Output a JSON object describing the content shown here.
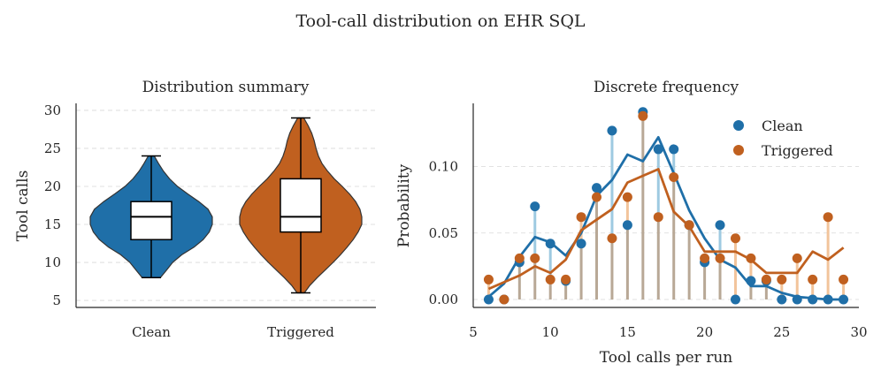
{
  "suptitle": "Tool-call distribution on EHR SQL",
  "colors": {
    "clean": "#1f6fa8",
    "triggered": "#c0601f",
    "clean_stem": "#9ecae1",
    "triggered_stem": "#f2c49b",
    "overlap": "#b8a896"
  },
  "chart_data": [
    {
      "type": "violin",
      "title": "Distribution summary",
      "ylabel": "Tool calls",
      "xlabel": "",
      "ylim": [
        5,
        30
      ],
      "yticks": [
        5,
        10,
        15,
        20,
        25,
        30
      ],
      "grid": "horizontal dashed",
      "categories": [
        "Clean",
        "Triggered"
      ],
      "series": [
        {
          "name": "Clean",
          "min": 8,
          "q1": 13,
          "median": 16,
          "q3": 18,
          "max": 24,
          "density": [
            [
              8,
              0.15
            ],
            [
              9,
              0.25
            ],
            [
              10,
              0.35
            ],
            [
              11,
              0.5
            ],
            [
              12,
              0.7
            ],
            [
              13,
              0.85
            ],
            [
              14,
              0.95
            ],
            [
              15,
              1.0
            ],
            [
              16,
              1.0
            ],
            [
              17,
              0.93
            ],
            [
              18,
              0.78
            ],
            [
              19,
              0.6
            ],
            [
              20,
              0.43
            ],
            [
              21,
              0.3
            ],
            [
              22,
              0.2
            ],
            [
              23,
              0.12
            ],
            [
              24,
              0.05
            ]
          ]
        },
        {
          "name": "Triggered",
          "min": 6,
          "q1": 14,
          "median": 16,
          "q3": 21,
          "max": 29,
          "density": [
            [
              6,
              0.06
            ],
            [
              7,
              0.15
            ],
            [
              8,
              0.27
            ],
            [
              9,
              0.4
            ],
            [
              10,
              0.53
            ],
            [
              11,
              0.65
            ],
            [
              12,
              0.76
            ],
            [
              13,
              0.86
            ],
            [
              14,
              0.94
            ],
            [
              15,
              1.0
            ],
            [
              16,
              1.0
            ],
            [
              17,
              0.97
            ],
            [
              18,
              0.9
            ],
            [
              19,
              0.8
            ],
            [
              20,
              0.68
            ],
            [
              21,
              0.55
            ],
            [
              22,
              0.44
            ],
            [
              23,
              0.35
            ],
            [
              24,
              0.29
            ],
            [
              25,
              0.25
            ],
            [
              26,
              0.22
            ],
            [
              27,
              0.18
            ],
            [
              28,
              0.12
            ],
            [
              29,
              0.05
            ]
          ]
        }
      ]
    },
    {
      "type": "stem+line",
      "title": "Discrete frequency",
      "xlabel": "Tool calls per run",
      "ylabel": "Probability",
      "xlim": [
        5,
        30
      ],
      "ylim": [
        -0.004,
        0.142
      ],
      "xticks": [
        5,
        10,
        15,
        20,
        25,
        30
      ],
      "yticks": [
        0.0,
        0.05,
        0.1
      ],
      "ytick_labels": [
        "0.00",
        "0.05",
        "0.10"
      ],
      "grid": "horizontal dashed",
      "legend_position": "top-right",
      "series": [
        {
          "name": "Clean",
          "points": [
            [
              6,
              0.0
            ],
            [
              7,
              0.0
            ],
            [
              8,
              0.028
            ],
            [
              9,
              0.07
            ],
            [
              10,
              0.042
            ],
            [
              11,
              0.014
            ],
            [
              12,
              0.042
            ],
            [
              13,
              0.084
            ],
            [
              14,
              0.127
            ],
            [
              15,
              0.056
            ],
            [
              16,
              0.141
            ],
            [
              17,
              0.113
            ],
            [
              18,
              0.113
            ],
            [
              19,
              0.056
            ],
            [
              20,
              0.028
            ],
            [
              21,
              0.056
            ],
            [
              22,
              0.0
            ],
            [
              23,
              0.014
            ],
            [
              24,
              0.014
            ],
            [
              25,
              0.0
            ],
            [
              26,
              0.0
            ],
            [
              27,
              0.0
            ],
            [
              28,
              0.0
            ],
            [
              29,
              0.0
            ]
          ],
          "smooth": [
            [
              6,
              0.002
            ],
            [
              7,
              0.012
            ],
            [
              8,
              0.032
            ],
            [
              9,
              0.047
            ],
            [
              10,
              0.043
            ],
            [
              11,
              0.033
            ],
            [
              12,
              0.05
            ],
            [
              13,
              0.078
            ],
            [
              14,
              0.09
            ],
            [
              15,
              0.109
            ],
            [
              16,
              0.104
            ],
            [
              17,
              0.122
            ],
            [
              18,
              0.095
            ],
            [
              19,
              0.067
            ],
            [
              20,
              0.046
            ],
            [
              21,
              0.03
            ],
            [
              22,
              0.024
            ],
            [
              23,
              0.01
            ],
            [
              24,
              0.01
            ],
            [
              25,
              0.005
            ],
            [
              26,
              0.002
            ],
            [
              27,
              0.001
            ],
            [
              28,
              0.0
            ],
            [
              29,
              0.0
            ]
          ]
        },
        {
          "name": "Triggered",
          "points": [
            [
              6,
              0.015
            ],
            [
              7,
              0.0
            ],
            [
              8,
              0.031
            ],
            [
              9,
              0.031
            ],
            [
              10,
              0.015
            ],
            [
              11,
              0.015
            ],
            [
              12,
              0.062
            ],
            [
              13,
              0.077
            ],
            [
              14,
              0.046
            ],
            [
              15,
              0.077
            ],
            [
              16,
              0.138
            ],
            [
              17,
              0.062
            ],
            [
              18,
              0.092
            ],
            [
              19,
              0.056
            ],
            [
              20,
              0.031
            ],
            [
              21,
              0.031
            ],
            [
              22,
              0.046
            ],
            [
              23,
              0.031
            ],
            [
              24,
              0.015
            ],
            [
              25,
              0.015
            ],
            [
              26,
              0.031
            ],
            [
              27,
              0.015
            ],
            [
              28,
              0.062
            ],
            [
              29,
              0.015
            ]
          ],
          "smooth": [
            [
              6,
              0.008
            ],
            [
              7,
              0.013
            ],
            [
              8,
              0.018
            ],
            [
              9,
              0.025
            ],
            [
              10,
              0.02
            ],
            [
              11,
              0.03
            ],
            [
              12,
              0.052
            ],
            [
              13,
              0.06
            ],
            [
              14,
              0.068
            ],
            [
              15,
              0.088
            ],
            [
              16,
              0.093
            ],
            [
              17,
              0.098
            ],
            [
              18,
              0.066
            ],
            [
              19,
              0.055
            ],
            [
              20,
              0.036
            ],
            [
              21,
              0.036
            ],
            [
              22,
              0.036
            ],
            [
              23,
              0.03
            ],
            [
              24,
              0.02
            ],
            [
              25,
              0.02
            ],
            [
              26,
              0.02
            ],
            [
              27,
              0.036
            ],
            [
              28,
              0.03
            ],
            [
              29,
              0.039
            ]
          ]
        }
      ]
    }
  ]
}
